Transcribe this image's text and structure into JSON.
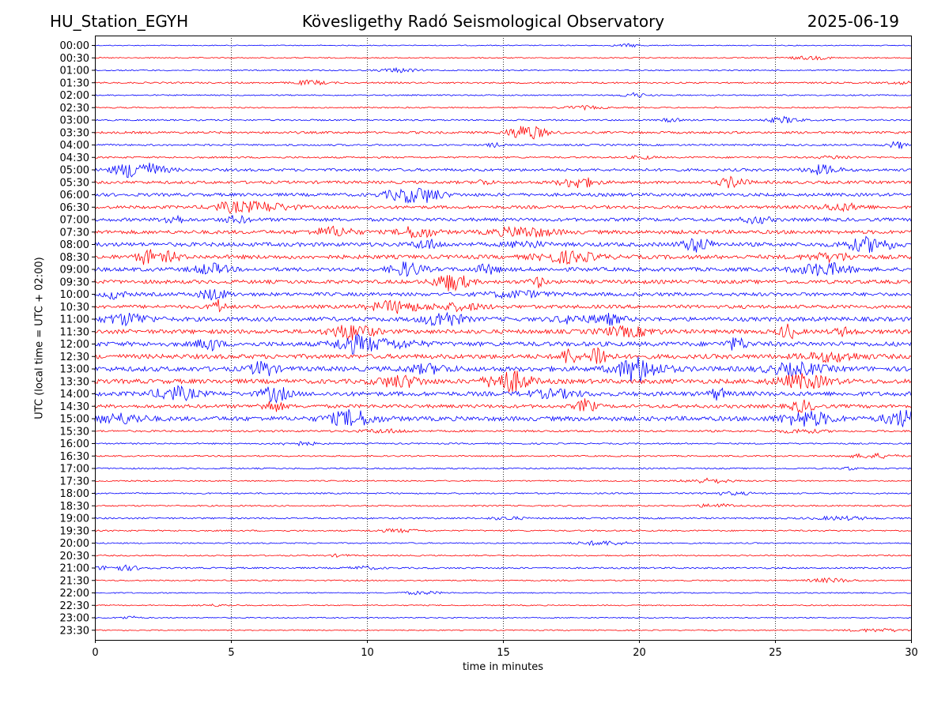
{
  "header": {
    "station": "HU_Station_EGYH",
    "title": "Kövesligethy Radó Seismological Observatory",
    "date": "2025-06-19"
  },
  "chart_data": {
    "type": "line",
    "title": "Kövesligethy Radó Seismological Observatory",
    "xlabel": "time in minutes",
    "ylabel": "UTC (local time = UTC + 02:00)",
    "xlim": [
      0,
      30
    ],
    "x_ticks": [
      0,
      5,
      10,
      15,
      20,
      25,
      30
    ],
    "grid": "vertical dotted at x ticks",
    "colors": [
      "#0000ff",
      "#ff0000"
    ],
    "rows": [
      {
        "label": "00:00",
        "amp": 0.6
      },
      {
        "label": "00:30",
        "amp": 0.7
      },
      {
        "label": "01:00",
        "amp": 0.8
      },
      {
        "label": "01:30",
        "amp": 1.0
      },
      {
        "label": "02:00",
        "amp": 0.8
      },
      {
        "label": "02:30",
        "amp": 0.8
      },
      {
        "label": "03:00",
        "amp": 1.0
      },
      {
        "label": "03:30",
        "amp": 1.4
      },
      {
        "label": "04:00",
        "amp": 1.1
      },
      {
        "label": "04:30",
        "amp": 1.1
      },
      {
        "label": "05:00",
        "amp": 1.7
      },
      {
        "label": "05:30",
        "amp": 1.8
      },
      {
        "label": "06:00",
        "amp": 2.0
      },
      {
        "label": "06:30",
        "amp": 1.9
      },
      {
        "label": "07:00",
        "amp": 2.1
      },
      {
        "label": "07:30",
        "amp": 2.3
      },
      {
        "label": "08:00",
        "amp": 2.5
      },
      {
        "label": "08:30",
        "amp": 2.5
      },
      {
        "label": "09:00",
        "amp": 2.4
      },
      {
        "label": "09:30",
        "amp": 2.3
      },
      {
        "label": "10:00",
        "amp": 2.2
      },
      {
        "label": "10:30",
        "amp": 2.2
      },
      {
        "label": "11:00",
        "amp": 2.6
      },
      {
        "label": "11:30",
        "amp": 2.6
      },
      {
        "label": "12:00",
        "amp": 2.8
      },
      {
        "label": "12:30",
        "amp": 2.8
      },
      {
        "label": "13:00",
        "amp": 3.0
      },
      {
        "label": "13:30",
        "amp": 2.8
      },
      {
        "label": "14:00",
        "amp": 2.7
      },
      {
        "label": "14:30",
        "amp": 2.2
      },
      {
        "label": "15:00",
        "amp": 2.8
      },
      {
        "label": "15:30",
        "amp": 1.2
      },
      {
        "label": "16:00",
        "amp": 0.9
      },
      {
        "label": "16:30",
        "amp": 0.9
      },
      {
        "label": "17:00",
        "amp": 0.9
      },
      {
        "label": "17:30",
        "amp": 0.8
      },
      {
        "label": "18:00",
        "amp": 0.9
      },
      {
        "label": "18:30",
        "amp": 0.9
      },
      {
        "label": "19:00",
        "amp": 1.0
      },
      {
        "label": "19:30",
        "amp": 0.9
      },
      {
        "label": "20:00",
        "amp": 0.8
      },
      {
        "label": "20:30",
        "amp": 0.8
      },
      {
        "label": "21:00",
        "amp": 1.0
      },
      {
        "label": "21:30",
        "amp": 0.8
      },
      {
        "label": "22:00",
        "amp": 0.7
      },
      {
        "label": "22:30",
        "amp": 0.7
      },
      {
        "label": "23:00",
        "amp": 0.7
      },
      {
        "label": "23:30",
        "amp": 0.7
      }
    ]
  }
}
